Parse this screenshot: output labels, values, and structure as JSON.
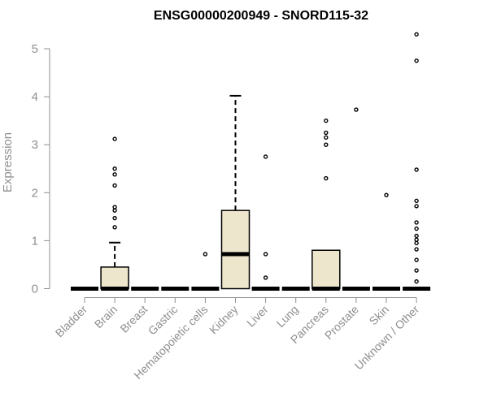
{
  "chart_data": {
    "type": "box",
    "title": "ENSG00000200949 - SNORD115-32",
    "xlabel": "",
    "ylabel": "Expression",
    "ylim": [
      0,
      5.3
    ],
    "yticks": [
      0,
      1,
      2,
      3,
      4,
      5
    ],
    "grid": false,
    "legend": "none",
    "box_fill": "#ede6cd",
    "box_stroke": "#000000",
    "axis_color": "#8f8f8f",
    "categories": [
      "Bladder",
      "Brain",
      "Breast",
      "Gastric",
      "Hematopoietic cells",
      "Kidney",
      "Liver",
      "Lung",
      "Pancreas",
      "Prostate",
      "Skin",
      "Unknown / Other"
    ],
    "boxes": [
      {
        "category": "Bladder",
        "q1": 0,
        "median": 0,
        "q3": 0,
        "whisker_low": 0,
        "whisker_high": 0,
        "outliers": []
      },
      {
        "category": "Brain",
        "q1": 0,
        "median": 0,
        "q3": 0.45,
        "whisker_low": 0,
        "whisker_high": 0.96,
        "outliers": [
          1.28,
          1.47,
          1.63,
          1.7,
          2.15,
          2.38,
          2.5,
          3.12
        ]
      },
      {
        "category": "Breast",
        "q1": 0,
        "median": 0,
        "q3": 0,
        "whisker_low": 0,
        "whisker_high": 0,
        "outliers": []
      },
      {
        "category": "Gastric",
        "q1": 0,
        "median": 0,
        "q3": 0,
        "whisker_low": 0,
        "whisker_high": 0,
        "outliers": []
      },
      {
        "category": "Hematopoietic cells",
        "q1": 0,
        "median": 0,
        "q3": 0,
        "whisker_low": 0,
        "whisker_high": 0,
        "outliers": [
          0.72
        ]
      },
      {
        "category": "Kidney",
        "q1": 0,
        "median": 0.72,
        "q3": 1.63,
        "whisker_low": 0,
        "whisker_high": 4.02,
        "outliers": []
      },
      {
        "category": "Liver",
        "q1": 0,
        "median": 0,
        "q3": 0,
        "whisker_low": 0,
        "whisker_high": 0,
        "outliers": [
          0.23,
          0.72,
          2.75
        ]
      },
      {
        "category": "Lung",
        "q1": 0,
        "median": 0,
        "q3": 0,
        "whisker_low": 0,
        "whisker_high": 0,
        "outliers": []
      },
      {
        "category": "Pancreas",
        "q1": 0,
        "median": 0,
        "q3": 0.8,
        "whisker_low": 0,
        "whisker_high": 0.8,
        "outliers": [
          2.3,
          3.0,
          3.15,
          3.25,
          3.5
        ]
      },
      {
        "category": "Prostate",
        "q1": 0,
        "median": 0,
        "q3": 0,
        "whisker_low": 0,
        "whisker_high": 0,
        "outliers": [
          3.73
        ]
      },
      {
        "category": "Skin",
        "q1": 0,
        "median": 0,
        "q3": 0,
        "whisker_low": 0,
        "whisker_high": 0,
        "outliers": [
          1.95
        ]
      },
      {
        "category": "Unknown / Other",
        "q1": 0,
        "median": 0,
        "q3": 0,
        "whisker_low": 0,
        "whisker_high": 0,
        "outliers": [
          0.15,
          0.38,
          0.6,
          0.82,
          0.95,
          1.02,
          1.1,
          1.25,
          1.38,
          1.72,
          1.83,
          2.48,
          4.75,
          5.3
        ]
      }
    ]
  }
}
